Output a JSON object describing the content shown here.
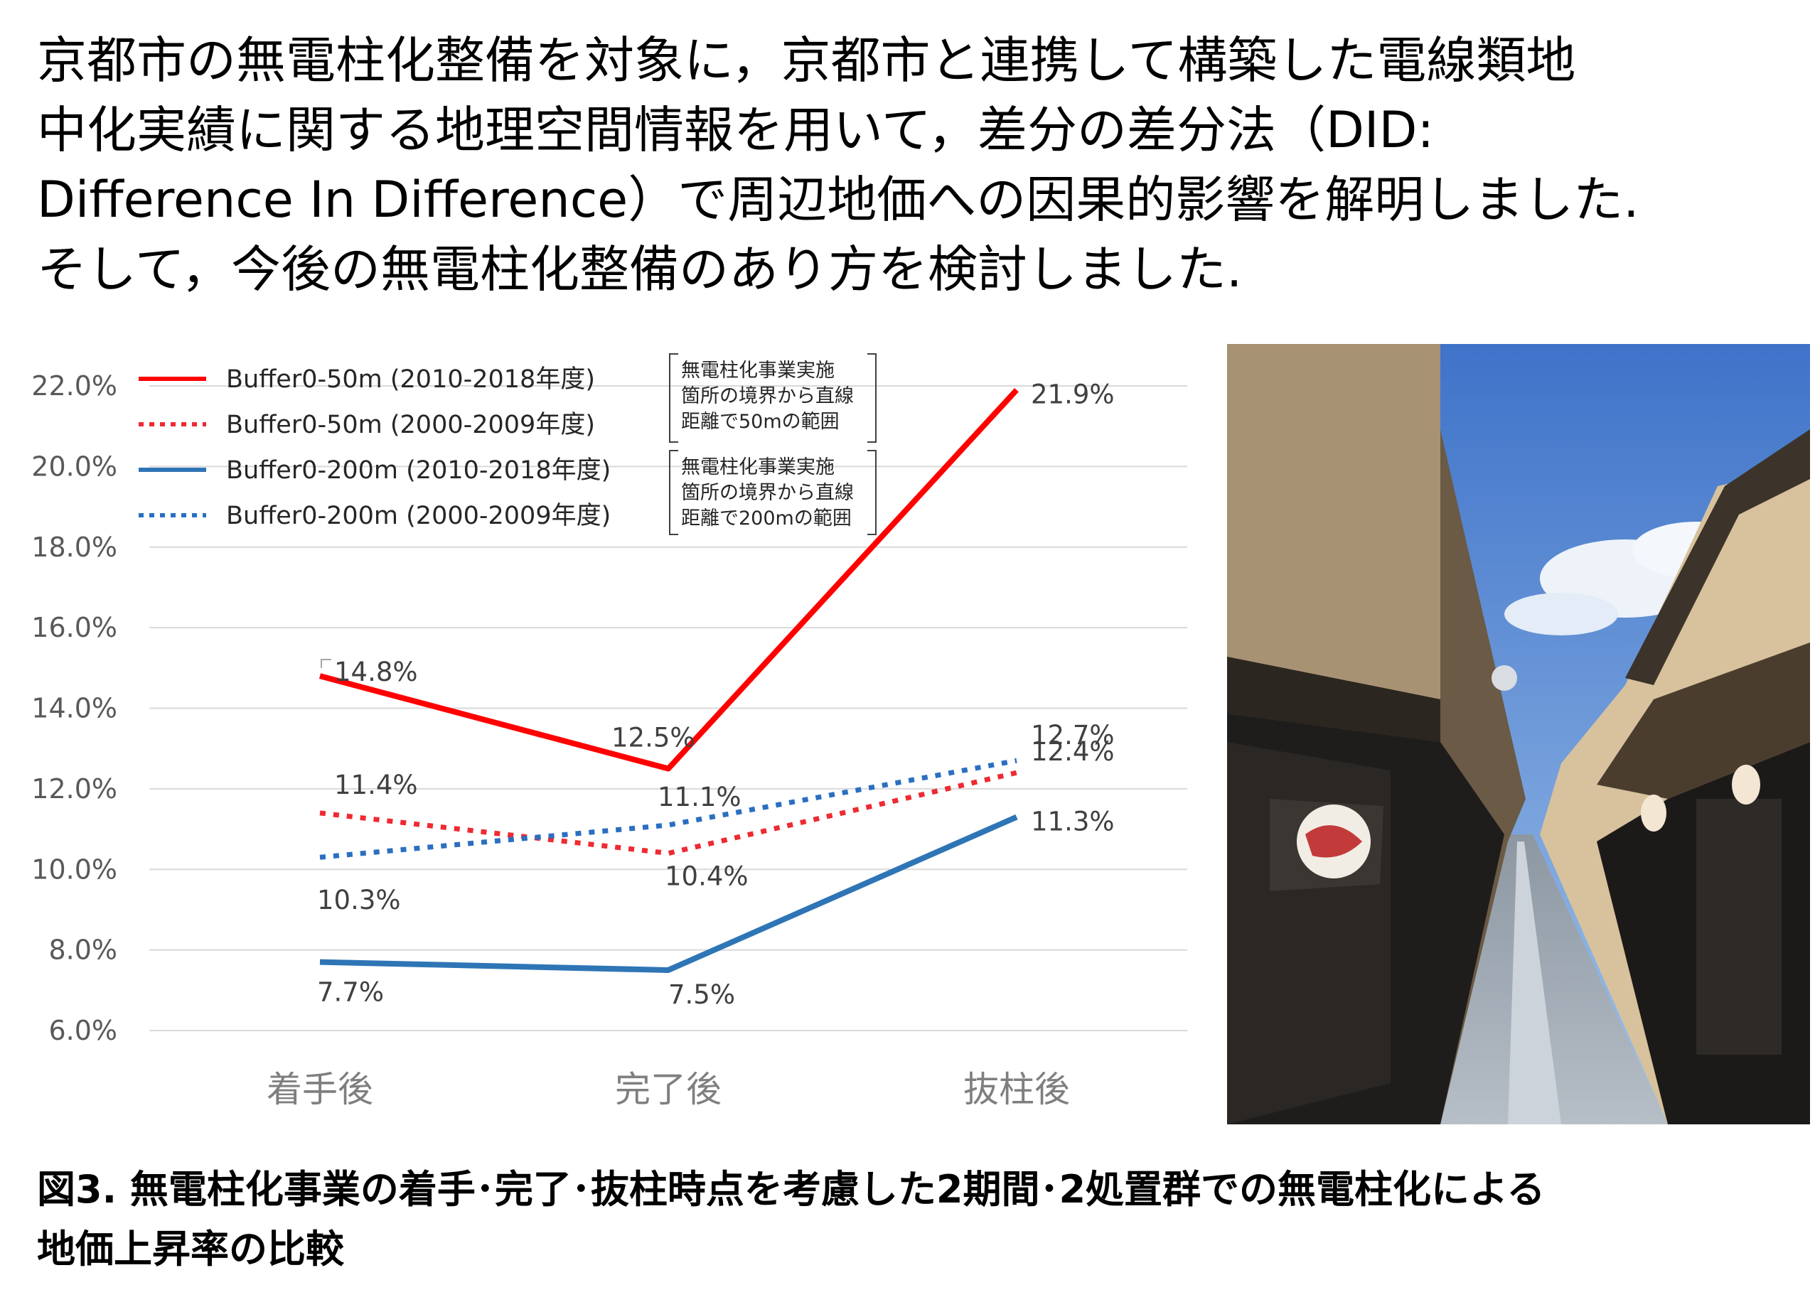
{
  "intro": {
    "lines": [
      "京都市の無電柱化整備を対象に，京都市と連携して構築した電線類地",
      "中化実績に関する地理空間情報を用いて，差分の差分法（DID:",
      "Difference In Difference）で周辺地価への因果的影響を解明しました.",
      "そして，今後の無電柱化整備のあり方を検討しました."
    ]
  },
  "chart_data": {
    "type": "line",
    "categories": [
      "着手後",
      "完了後",
      "抜柱後"
    ],
    "ylim": [
      6.0,
      22.0
    ],
    "yticks": [
      "6.0%",
      "8.0%",
      "10.0%",
      "12.0%",
      "14.0%",
      "16.0%",
      "18.0%",
      "20.0%",
      "22.0%"
    ],
    "grid": true,
    "legend_position": "top-left",
    "series": [
      {
        "name": "Buffer0-50m (2010-2018年度)",
        "values": [
          14.8,
          12.5,
          21.9
        ],
        "labels": [
          "14.8%",
          "12.5%",
          "21.9%"
        ],
        "color": "#ff0000",
        "dash": "solid"
      },
      {
        "name": "Buffer0-50m (2000-2009年度)",
        "values": [
          11.4,
          10.4,
          12.4
        ],
        "labels": [
          "11.4%",
          "10.4%",
          "12.4%"
        ],
        "color": "#ee2a32",
        "dash": "dotted"
      },
      {
        "name": "Buffer0-200m (2010-2018年度)",
        "values": [
          7.7,
          7.5,
          11.3
        ],
        "labels": [
          "7.7%",
          "7.5%",
          "11.3%"
        ],
        "color": "#2e75b6",
        "dash": "solid"
      },
      {
        "name": "Buffer0-200m (2000-2009年度)",
        "values": [
          10.3,
          11.1,
          12.7
        ],
        "labels": [
          "10.3%",
          "11.1%",
          "12.7%"
        ],
        "color": "#2a6fc0",
        "dash": "dotted"
      }
    ],
    "annotations": [
      {
        "lines": [
          "無電柱化事業実施",
          "箇所の境界から直線",
          "距離で50mの範囲"
        ]
      },
      {
        "lines": [
          "無電柱化事業実施",
          "箇所の境界から直線",
          "距離で200mの範囲"
        ]
      }
    ]
  },
  "photo": {
    "alt": "京都の石畳の路地（無電柱化された街並み）"
  },
  "caption": {
    "lines": [
      "図3. 無電柱化事業の着手･完了･抜柱時点を考慮した2期間･2処置群での無電柱化による",
      "地価上昇率の比較"
    ]
  }
}
